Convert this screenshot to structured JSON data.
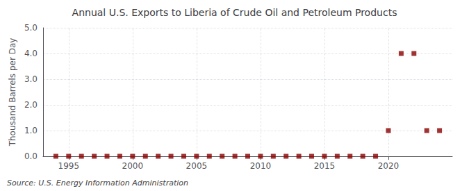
{
  "chart_data": {
    "type": "scatter",
    "title": "Annual U.S. Exports to Liberia of Crude Oil and Petroleum Products",
    "y_label": "Thousand Barrels per Day",
    "annotation": "Source: U.S. Energy Information Administration",
    "x": [
      1994,
      1995,
      1996,
      1997,
      1998,
      1999,
      2000,
      2001,
      2002,
      2003,
      2004,
      2005,
      2006,
      2007,
      2008,
      2009,
      2010,
      2011,
      2012,
      2013,
      2014,
      2015,
      2016,
      2017,
      2018,
      2019,
      2020,
      2021,
      2022,
      2023,
      2024
    ],
    "values": [
      0,
      0,
      0,
      0,
      0,
      0,
      0,
      0,
      0,
      0,
      0,
      0,
      0,
      0,
      0,
      0,
      0,
      0,
      0,
      0,
      0,
      0,
      0,
      0,
      0,
      0,
      1,
      4,
      4,
      1,
      1
    ],
    "color": "#8b0000",
    "marker": "square",
    "xlim": [
      1993,
      2025
    ],
    "xticks": [
      1995,
      2000,
      2005,
      2010,
      2015,
      2020
    ],
    "ylim": [
      0.0,
      5.0
    ],
    "yticks": [
      {
        "value": 0,
        "label": "0.0"
      },
      {
        "value": 1,
        "label": "1.0"
      },
      {
        "value": 2,
        "label": "2.0"
      },
      {
        "value": 3,
        "label": "3.0"
      },
      {
        "value": 4,
        "label": "4.0"
      },
      {
        "value": 5,
        "label": "5.0"
      }
    ],
    "grid": true
  }
}
